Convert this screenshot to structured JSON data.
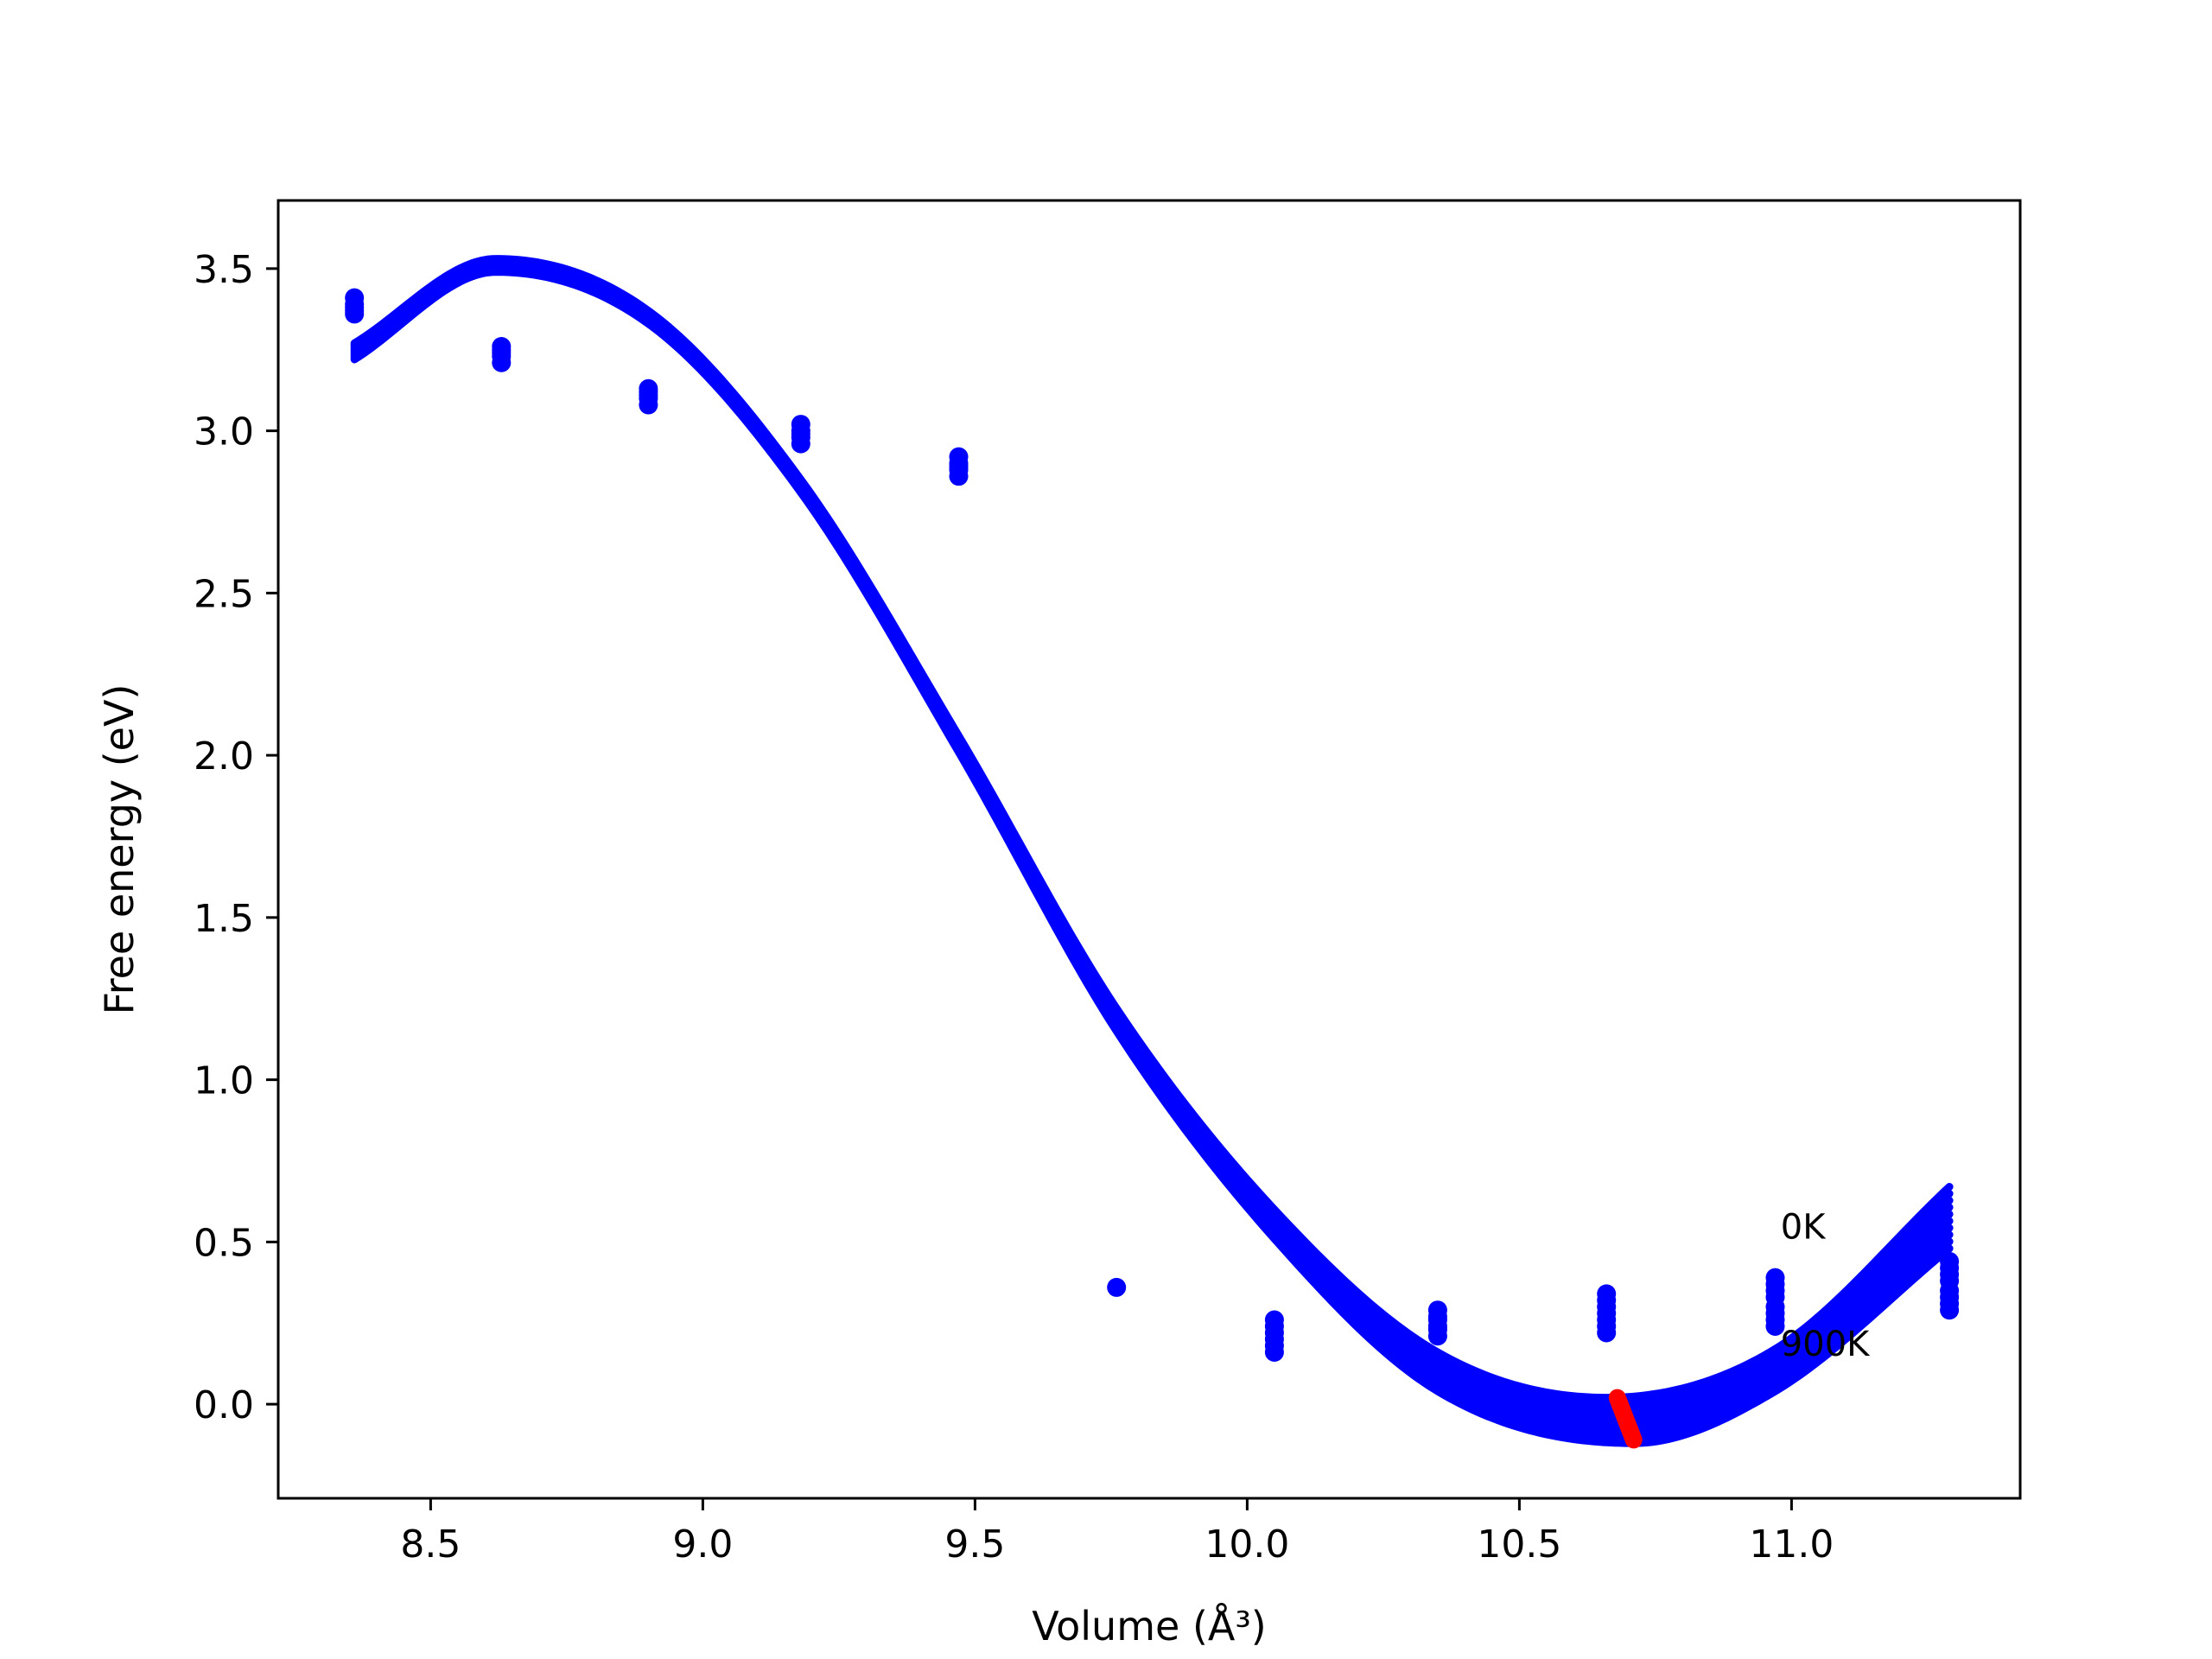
{
  "chart_data": {
    "type": "scatter",
    "xlabel": "Volume (Å³)",
    "ylabel": "Free energy (eV)",
    "xlim": [
      8.22,
      11.42
    ],
    "ylim": [
      -0.29,
      3.71
    ],
    "xticks": [
      8.5,
      9.0,
      9.5,
      10.0,
      10.5,
      11.0
    ],
    "xtick_labels": [
      "8.5",
      "9.0",
      "9.5",
      "10.0",
      "10.5",
      "11.0"
    ],
    "yticks": [
      0.0,
      0.5,
      1.0,
      1.5,
      2.0,
      2.5,
      3.0,
      3.5
    ],
    "ytick_labels": [
      "0.0",
      "0.5",
      "1.0",
      "1.5",
      "2.0",
      "2.5",
      "3.0",
      "3.5"
    ],
    "grid": false,
    "colors": {
      "curve": "#0000ff",
      "points": "#0000ff",
      "minimum": "#ff0000"
    },
    "fit_curves": {
      "name": "",
      "x_range": [
        8.36,
        11.29
      ],
      "curve_0K": {
        "x": [
          8.36,
          8.62,
          8.9,
          9.18,
          9.47,
          9.76,
          10.05,
          10.35,
          10.66,
          10.97,
          11.29
        ],
        "y": [
          3.27,
          3.53,
          3.37,
          2.85,
          2.06,
          1.22,
          0.6,
          0.16,
          0.02,
          0.17,
          0.67
        ]
      },
      "curve_900K": {
        "x": [
          8.36,
          8.62,
          8.9,
          9.18,
          9.47,
          9.76,
          10.05,
          10.35,
          10.71,
          10.97,
          11.29
        ],
        "y": [
          3.22,
          3.49,
          3.33,
          2.81,
          2.01,
          1.15,
          0.51,
          0.04,
          -0.12,
          0.04,
          0.48
        ]
      },
      "band_count": 10
    },
    "scatter_points": [
      {
        "x": 8.36,
        "y": [
          3.41,
          3.39,
          3.38,
          3.37,
          3.36
        ]
      },
      {
        "x": 8.63,
        "y": [
          3.26,
          3.25,
          3.24,
          3.23,
          3.21
        ]
      },
      {
        "x": 8.9,
        "y": [
          3.13,
          3.12,
          3.11,
          3.1,
          3.08
        ]
      },
      {
        "x": 9.18,
        "y": [
          3.02,
          3.0,
          2.99,
          2.98,
          2.96
        ]
      },
      {
        "x": 9.47,
        "y": [
          2.92,
          2.9,
          2.89,
          2.88,
          2.86
        ]
      },
      {
        "x": 9.76,
        "y": [
          0.36
        ]
      },
      {
        "x": 10.05,
        "y": [
          0.26,
          0.24,
          0.22,
          0.2,
          0.18,
          0.16
        ]
      },
      {
        "x": 10.35,
        "y": [
          0.29,
          0.27,
          0.26,
          0.24,
          0.23,
          0.21
        ]
      },
      {
        "x": 10.66,
        "y": [
          0.34,
          0.32,
          0.3,
          0.28,
          0.26,
          0.24,
          0.22
        ]
      },
      {
        "x": 10.97,
        "y": [
          0.39,
          0.37,
          0.35,
          0.33,
          0.3,
          0.28,
          0.26,
          0.24
        ]
      },
      {
        "x": 11.29,
        "y": [
          0.44,
          0.42,
          0.4,
          0.38,
          0.35,
          0.33,
          0.31,
          0.29
        ]
      }
    ],
    "minimum_track": {
      "x": [
        10.68,
        10.71
      ],
      "y": [
        0.02,
        -0.11
      ]
    },
    "annotations": [
      {
        "text": "0K",
        "x": 10.98,
        "y": 0.51
      },
      {
        "text": "900K",
        "x": 10.98,
        "y": 0.15
      }
    ]
  }
}
